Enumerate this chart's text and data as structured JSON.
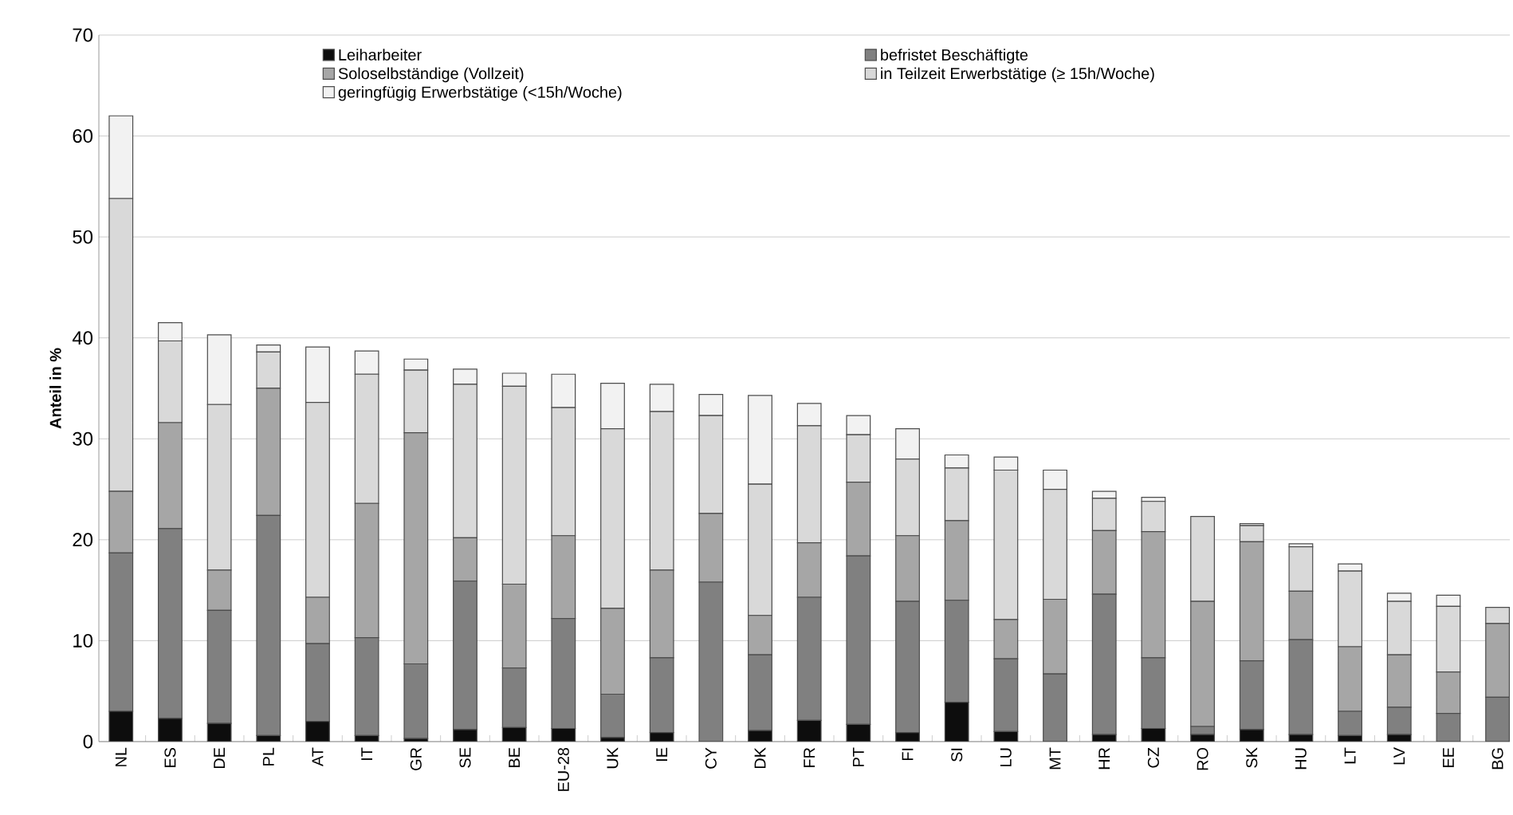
{
  "chart_data": {
    "type": "bar",
    "stacked": true,
    "ylabel": "Anteil in %",
    "categories": [
      "NL",
      "ES",
      "DE",
      "PL",
      "AT",
      "IT",
      "GR",
      "SE",
      "BE",
      "EU-28",
      "UK",
      "IE",
      "CY",
      "DK",
      "FR",
      "PT",
      "FI",
      "SI",
      "LU",
      "MT",
      "HR",
      "CZ",
      "RO",
      "SK",
      "HU",
      "LT",
      "LV",
      "EE",
      "BG"
    ],
    "series": [
      {
        "name": "Leiharbeiter",
        "color": "#0d0d0d",
        "values": [
          3.0,
          2.3,
          1.8,
          0.6,
          2.0,
          0.6,
          0.3,
          1.2,
          1.4,
          1.3,
          0.4,
          0.9,
          0,
          1.1,
          2.1,
          1.7,
          0.9,
          3.9,
          1.0,
          0,
          0.7,
          1.3,
          0.7,
          1.2,
          0.7,
          0.6,
          0.7,
          0,
          0
        ]
      },
      {
        "name": "befristet Beschäftigte",
        "color": "#808080",
        "values": [
          15.7,
          18.8,
          11.2,
          21.8,
          7.7,
          9.7,
          7.4,
          14.7,
          5.9,
          10.9,
          4.3,
          7.4,
          15.8,
          7.5,
          12.2,
          16.7,
          13.0,
          10.1,
          7.2,
          6.7,
          13.9,
          7.0,
          0.8,
          6.8,
          9.4,
          2.4,
          2.7,
          2.8,
          4.4
        ]
      },
      {
        "name": "Soloselbständige (Vollzeit)",
        "color": "#a6a6a6",
        "values": [
          6.1,
          10.5,
          4.0,
          12.6,
          4.6,
          13.3,
          22.9,
          4.3,
          8.3,
          8.2,
          8.5,
          8.7,
          6.8,
          3.9,
          5.4,
          7.3,
          6.5,
          7.9,
          3.9,
          7.4,
          6.3,
          12.5,
          12.4,
          11.8,
          4.8,
          6.4,
          5.2,
          4.1,
          7.3
        ]
      },
      {
        "name": "in Teilzeit Erwerbstätige (≥ 15h/Woche)",
        "color": "#d9d9d9",
        "values": [
          29.0,
          8.1,
          16.4,
          3.6,
          19.3,
          12.8,
          6.2,
          15.2,
          19.6,
          12.7,
          17.8,
          15.7,
          9.7,
          13.0,
          11.6,
          4.7,
          7.6,
          5.2,
          14.8,
          10.9,
          3.2,
          3.0,
          8.4,
          1.6,
          4.4,
          7.5,
          5.3,
          6.5,
          1.6
        ]
      },
      {
        "name": "geringfügig Erwerbstätige (<15h/Woche)",
        "color": "#f2f2f2",
        "values": [
          8.2,
          1.8,
          6.9,
          0.7,
          5.5,
          2.3,
          1.1,
          1.5,
          1.3,
          3.3,
          4.5,
          2.7,
          2.1,
          8.8,
          2.2,
          1.9,
          3.0,
          1.3,
          1.3,
          1.9,
          0.7,
          0.4,
          null,
          0.2,
          0.3,
          0.7,
          0.8,
          1.1,
          0
        ]
      }
    ],
    "ylim": [
      0,
      70
    ],
    "yticks": [
      0,
      10,
      20,
      30,
      40,
      50,
      60,
      70
    ],
    "grid": "y",
    "legend": "top"
  }
}
